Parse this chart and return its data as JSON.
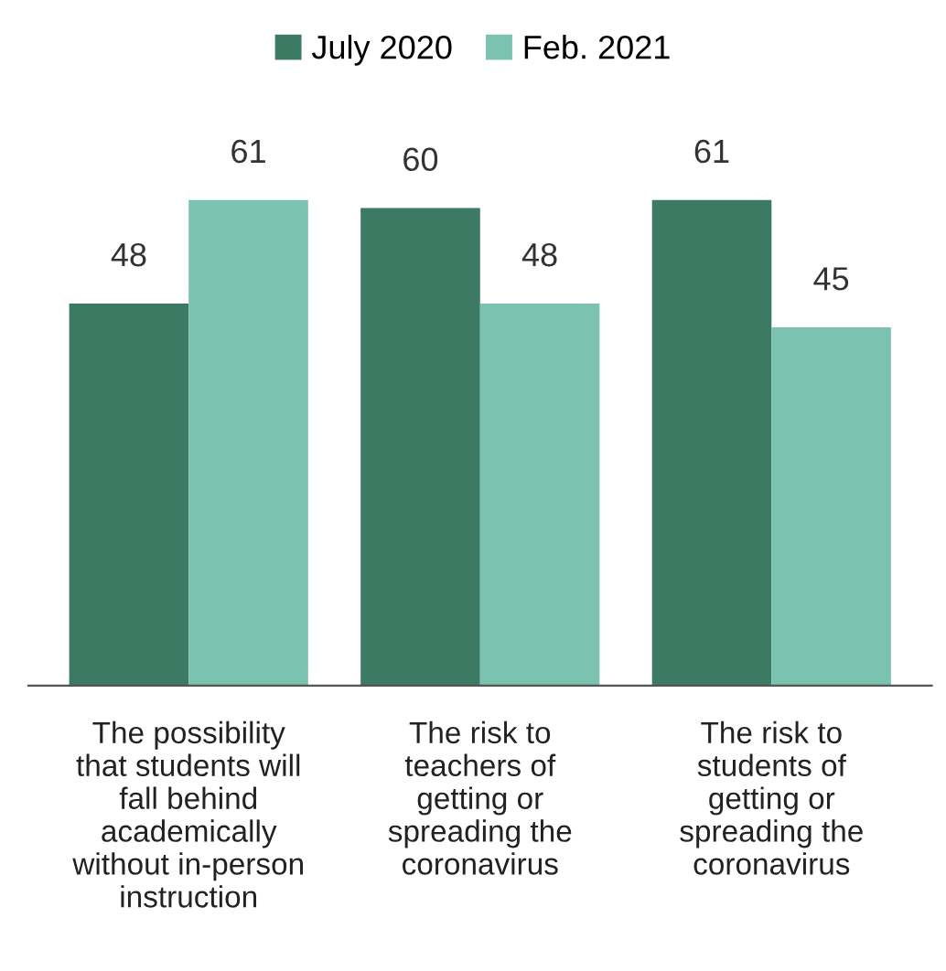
{
  "chart_data": {
    "type": "bar",
    "categories": [
      "The possibility\nthat students will\nfall behind\nacademically\nwithout in-person\ninstruction",
      "The risk to\nteachers of\ngetting or\nspreading the\ncoronavirus",
      "The risk to\nstudents of\ngetting or\nspreading the\ncoronavirus"
    ],
    "series": [
      {
        "name": "July 2020",
        "color": "#3c7a64",
        "values": [
          48,
          60,
          61
        ]
      },
      {
        "name": "Feb. 2021",
        "color": "#7bc3b0",
        "values": [
          61,
          48,
          45
        ]
      }
    ],
    "data_labels": true,
    "legend": "top",
    "grid": false
  }
}
